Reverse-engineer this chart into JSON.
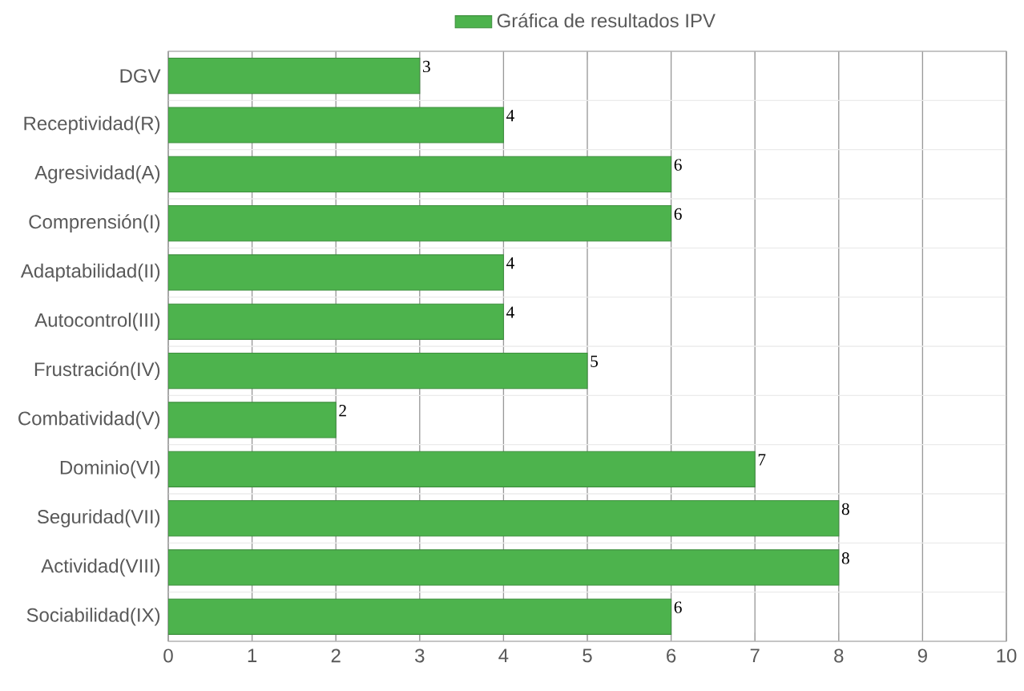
{
  "chart_data": {
    "type": "bar",
    "orientation": "horizontal",
    "categories": [
      "DGV",
      "Receptividad(R)",
      "Agresividad(A)",
      "Comprensión(I)",
      "Adaptabilidad(II)",
      "Autocontrol(III)",
      "Frustración(IV)",
      "Combatividad(V)",
      "Dominio(VI)",
      "Seguridad(VII)",
      "Actividad(VIII)",
      "Sociabilidad(IX)"
    ],
    "series": [
      {
        "name": "Gráfica de resultados IPV",
        "color": "#4db34d",
        "values": [
          3,
          4,
          6,
          6,
          4,
          4,
          5,
          2,
          7,
          8,
          8,
          6
        ]
      }
    ],
    "xlim": [
      0,
      10
    ],
    "xticks": [
      0,
      1,
      2,
      3,
      4,
      5,
      6,
      7,
      8,
      9,
      10
    ],
    "grid": true,
    "legend": "top",
    "data_labels": true
  }
}
